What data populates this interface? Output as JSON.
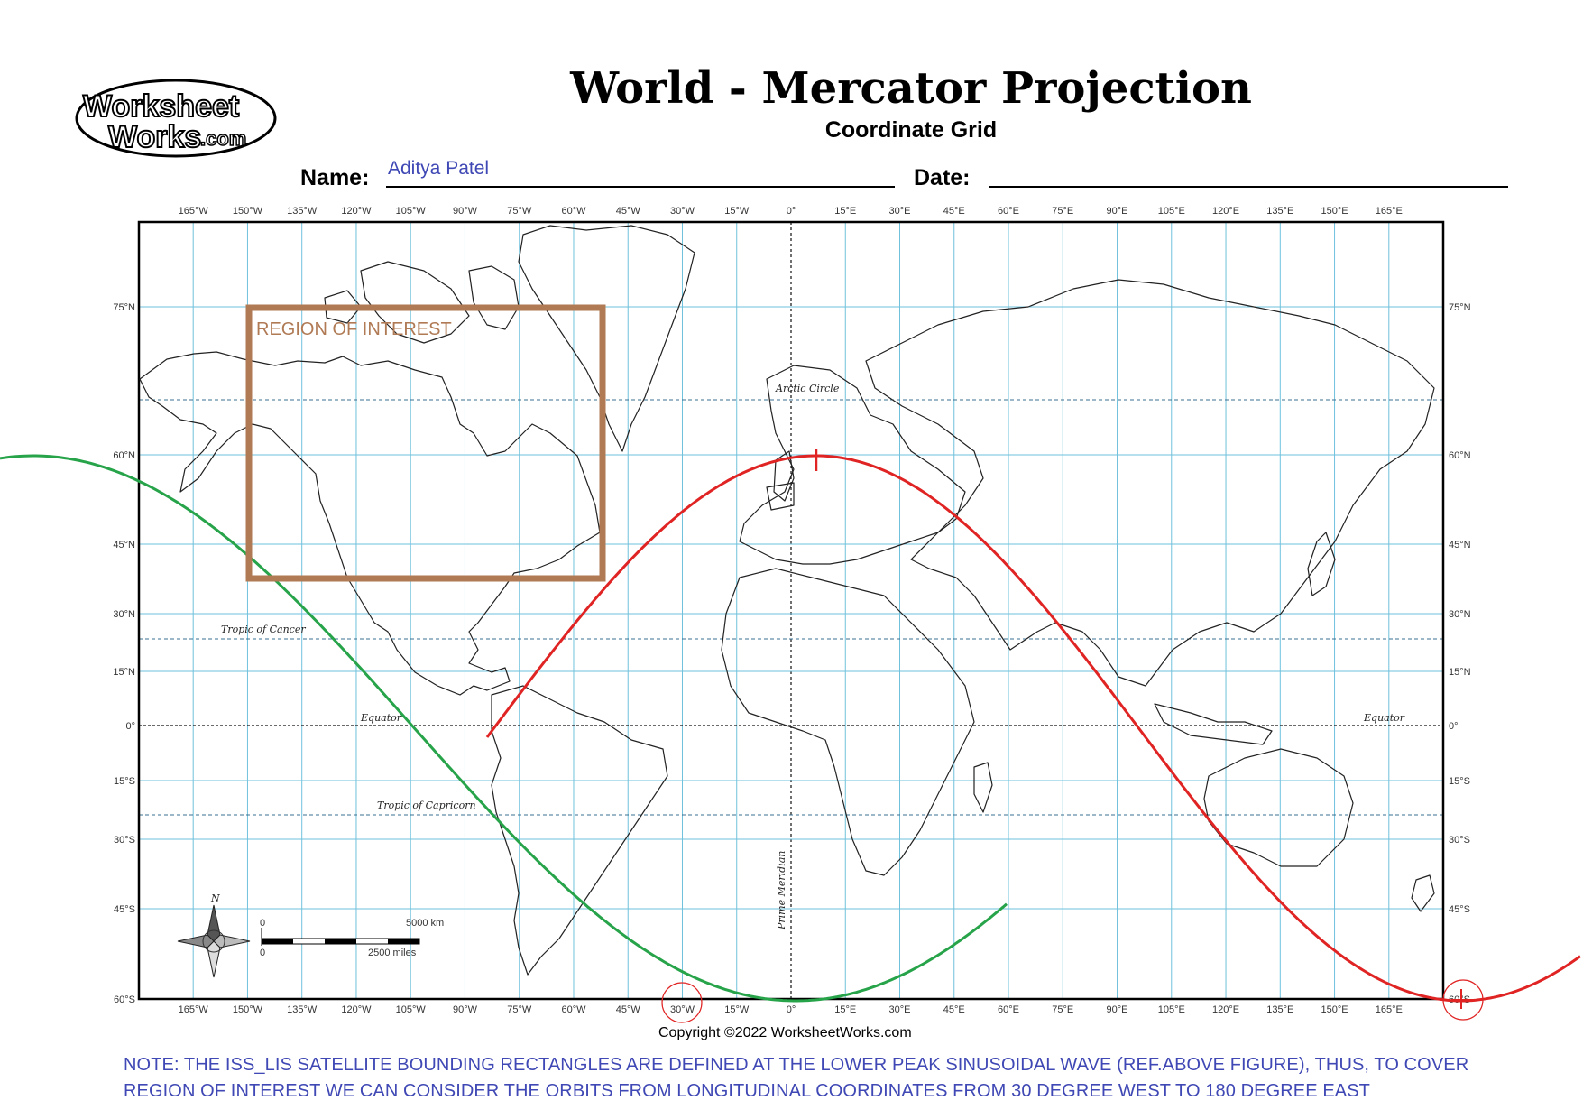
{
  "logo": {
    "line1": "Worksheet",
    "line2": "Works",
    "suffix": ".com"
  },
  "header": {
    "title": "World - Mercator Projection",
    "subtitle": "Coordinate Grid"
  },
  "form": {
    "name_label": "Name:",
    "name_value": "Aditya Patel",
    "date_label": "Date:"
  },
  "map": {
    "lon_labels": [
      "165°W",
      "150°W",
      "135°W",
      "120°W",
      "105°W",
      "90°W",
      "75°W",
      "60°W",
      "45°W",
      "30°W",
      "15°W",
      "0°",
      "15°E",
      "30°E",
      "45°E",
      "60°E",
      "75°E",
      "90°E",
      "105°E",
      "120°E",
      "135°E",
      "150°E",
      "165°E"
    ],
    "lat_labels": [
      "75°N",
      "60°N",
      "45°N",
      "30°N",
      "15°N",
      "0°",
      "15°S",
      "30°S",
      "45°S",
      "60°S"
    ],
    "special_lines": {
      "arctic": "Arctic Circle",
      "cancer": "Tropic of Cancer",
      "equator": "Equator",
      "capricorn": "Tropic of Capricorn",
      "prime": "Prime Meridian"
    },
    "region_label": "REGION OF INTEREST",
    "compass_label": "N",
    "scale": {
      "zero": "0",
      "km": "5000 km",
      "miles": "2500 miles"
    },
    "colors": {
      "grid": "#6fc1dc",
      "region": "#b07a55",
      "green_orbit": "#27a34a",
      "red_orbit": "#e02424",
      "ink": "#000000"
    }
  },
  "footer": {
    "copyright": "Copyright ©2022 WorksheetWorks.com",
    "note_line1": "NOTE: THE ISS_LIS SATELLITE BOUNDING RECTANGLES ARE DEFINED AT THE LOWER PEAK SINUSOIDAL WAVE (REF.ABOVE FIGURE), THUS, TO COVER",
    "note_line2": "REGION OF INTEREST WE CAN CONSIDER THE ORBITS FROM LONGITUDINAL COORDINATES FROM 30 DEGREE WEST TO 180 DEGREE EAST"
  }
}
